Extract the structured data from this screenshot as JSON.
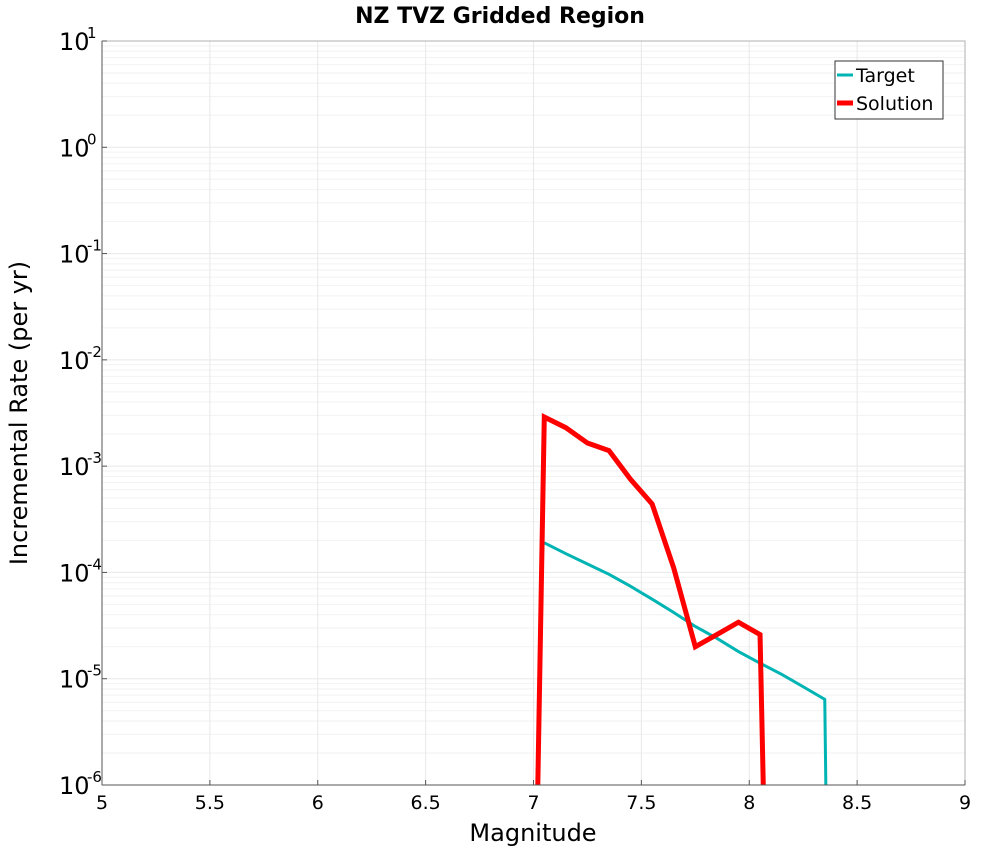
{
  "chart_data": {
    "type": "line",
    "title": "NZ TVZ Gridded Region",
    "xlabel": "Magnitude",
    "ylabel": "Incremental Rate (per yr)",
    "xlim": [
      5,
      9
    ],
    "ylim": [
      1e-06,
      10
    ],
    "yscale": "log",
    "grid": true,
    "legend_position": "top-right",
    "x_ticks": [
      "5",
      "5.5",
      "6",
      "6.5",
      "7",
      "7.5",
      "8",
      "8.5",
      "9"
    ],
    "y_ticks": [
      {
        "base": "10",
        "exp": "-6",
        "value": 1e-06
      },
      {
        "base": "10",
        "exp": "-5",
        "value": 1e-05
      },
      {
        "base": "10",
        "exp": "-4",
        "value": 0.0001
      },
      {
        "base": "10",
        "exp": "-3",
        "value": 0.001
      },
      {
        "base": "10",
        "exp": "-2",
        "value": 0.01
      },
      {
        "base": "10",
        "exp": "-1",
        "value": 0.1
      },
      {
        "base": "10",
        "exp": "0",
        "value": 1
      },
      {
        "base": "10",
        "exp": "1",
        "value": 10
      }
    ],
    "series": [
      {
        "name": "Target",
        "color": "#00b4b4",
        "points": [
          [
            7.05,
            0.00019
          ],
          [
            7.15,
            0.00015
          ],
          [
            7.25,
            0.00012
          ],
          [
            7.35,
            9.6e-05
          ],
          [
            7.45,
            7.4e-05
          ],
          [
            7.55,
            5.6e-05
          ],
          [
            7.65,
            4.2e-05
          ],
          [
            7.75,
            3.1e-05
          ],
          [
            7.85,
            2.4e-05
          ],
          [
            7.95,
            1.8e-05
          ],
          [
            8.05,
            1.4e-05
          ],
          [
            8.15,
            1.1e-05
          ],
          [
            8.25,
            8.4e-06
          ],
          [
            8.35,
            6.4e-06
          ],
          [
            8.355,
            1e-06
          ]
        ]
      },
      {
        "name": "Solution",
        "color": "#ff0000",
        "points": [
          [
            7.02,
            1e-06
          ],
          [
            7.05,
            0.0029
          ],
          [
            7.15,
            0.0023
          ],
          [
            7.25,
            0.00165
          ],
          [
            7.35,
            0.0014
          ],
          [
            7.45,
            0.00075
          ],
          [
            7.55,
            0.00044
          ],
          [
            7.65,
            0.00011
          ],
          [
            7.75,
            2e-05
          ],
          [
            7.85,
            2.6e-05
          ],
          [
            7.95,
            3.4e-05
          ],
          [
            8.05,
            2.6e-05
          ],
          [
            8.065,
            1e-06
          ]
        ]
      }
    ]
  }
}
